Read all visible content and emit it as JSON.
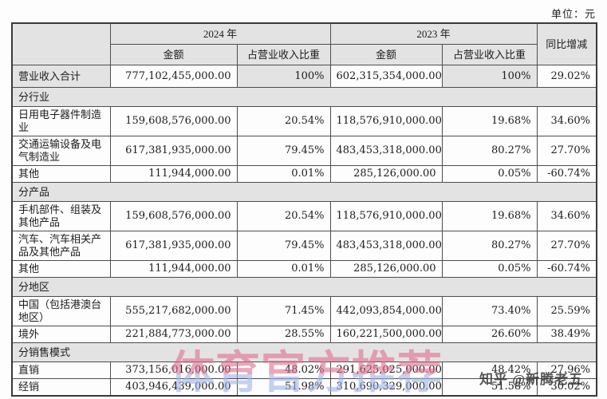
{
  "unit_label": "单位：元",
  "table": {
    "header": {
      "group_2024": "2024 年",
      "group_2023": "2023 年",
      "amount_label": "金额",
      "share_label": "占营业收入比重",
      "yoy_label": "同比增减"
    },
    "rows": [
      {
        "type": "total",
        "label": "营业收入合计",
        "a2024": "777,102,455,000.00",
        "p2024": "100%",
        "a2023": "602,315,354,000.00",
        "p2023": "100%",
        "yoy": "29.02%"
      },
      {
        "type": "section",
        "label": "分行业"
      },
      {
        "type": "data",
        "label": "日用电子器件制造业",
        "a2024": "159,608,576,000.00",
        "p2024": "20.54%",
        "a2023": "118,576,910,000.00",
        "p2023": "19.68%",
        "yoy": "34.60%"
      },
      {
        "type": "data",
        "label": "交通运输设备及电气制造业",
        "a2024": "617,381,935,000.00",
        "p2024": "79.45%",
        "a2023": "483,453,318,000.00",
        "p2023": "80.27%",
        "yoy": "27.70%"
      },
      {
        "type": "data",
        "label": "其他",
        "a2024": "111,944,000.00",
        "p2024": "0.01%",
        "a2023": "285,126,000.00",
        "p2023": "0.05%",
        "yoy": "-60.74%"
      },
      {
        "type": "section",
        "label": "分产品"
      },
      {
        "type": "data",
        "label": "手机部件、组装及其他产品",
        "a2024": "159,608,576,000.00",
        "p2024": "20.54%",
        "a2023": "118,576,910,000.00",
        "p2023": "19.68%",
        "yoy": "34.60%"
      },
      {
        "type": "data",
        "label": "汽车、汽车相关产品及其他产品",
        "a2024": "617,381,935,000.00",
        "p2024": "79.45%",
        "a2023": "483,453,318,000.00",
        "p2023": "80.27%",
        "yoy": "27.70%"
      },
      {
        "type": "data",
        "label": "其他",
        "a2024": "111,944,000.00",
        "p2024": "0.01%",
        "a2023": "285,126,000.00",
        "p2023": "0.05%",
        "yoy": "-60.74%"
      },
      {
        "type": "section",
        "label": "分地区"
      },
      {
        "type": "data",
        "label": "中国（包括港澳台地区）",
        "a2024": "555,217,682,000.00",
        "p2024": "71.45%",
        "a2023": "442,093,854,000.00",
        "p2023": "73.40%",
        "yoy": "25.59%"
      },
      {
        "type": "data",
        "label": "境外",
        "a2024": "221,884,773,000.00",
        "p2024": "28.55%",
        "a2023": "160,221,500,000.00",
        "p2023": "26.60%",
        "yoy": "38.49%"
      },
      {
        "type": "section",
        "label": "分销售模式"
      },
      {
        "type": "data",
        "label": "直销",
        "a2024": "373,156,016,000.00",
        "p2024": "48.02%",
        "a2023": "291,625,025,000.00",
        "p2023": "48.42%",
        "yoy": "27.96%"
      },
      {
        "type": "data",
        "label": "经销",
        "a2024": "403,946,439,000.00",
        "p2024": "51.98%",
        "a2023": "310,690,329,000.00",
        "p2023": "51.58%",
        "yoy": "30.02%"
      }
    ]
  },
  "watermarks": {
    "center_text": "体育官方推荐",
    "zhihu_text": "知乎 @新腾老五"
  },
  "colors": {
    "cell_shade": "#e3e3e3",
    "border": "#4d4d4d",
    "watermark_pink": "rgba(224,108,140,0.60)",
    "watermark_blue": "rgba(158,178,232,0.60)"
  }
}
